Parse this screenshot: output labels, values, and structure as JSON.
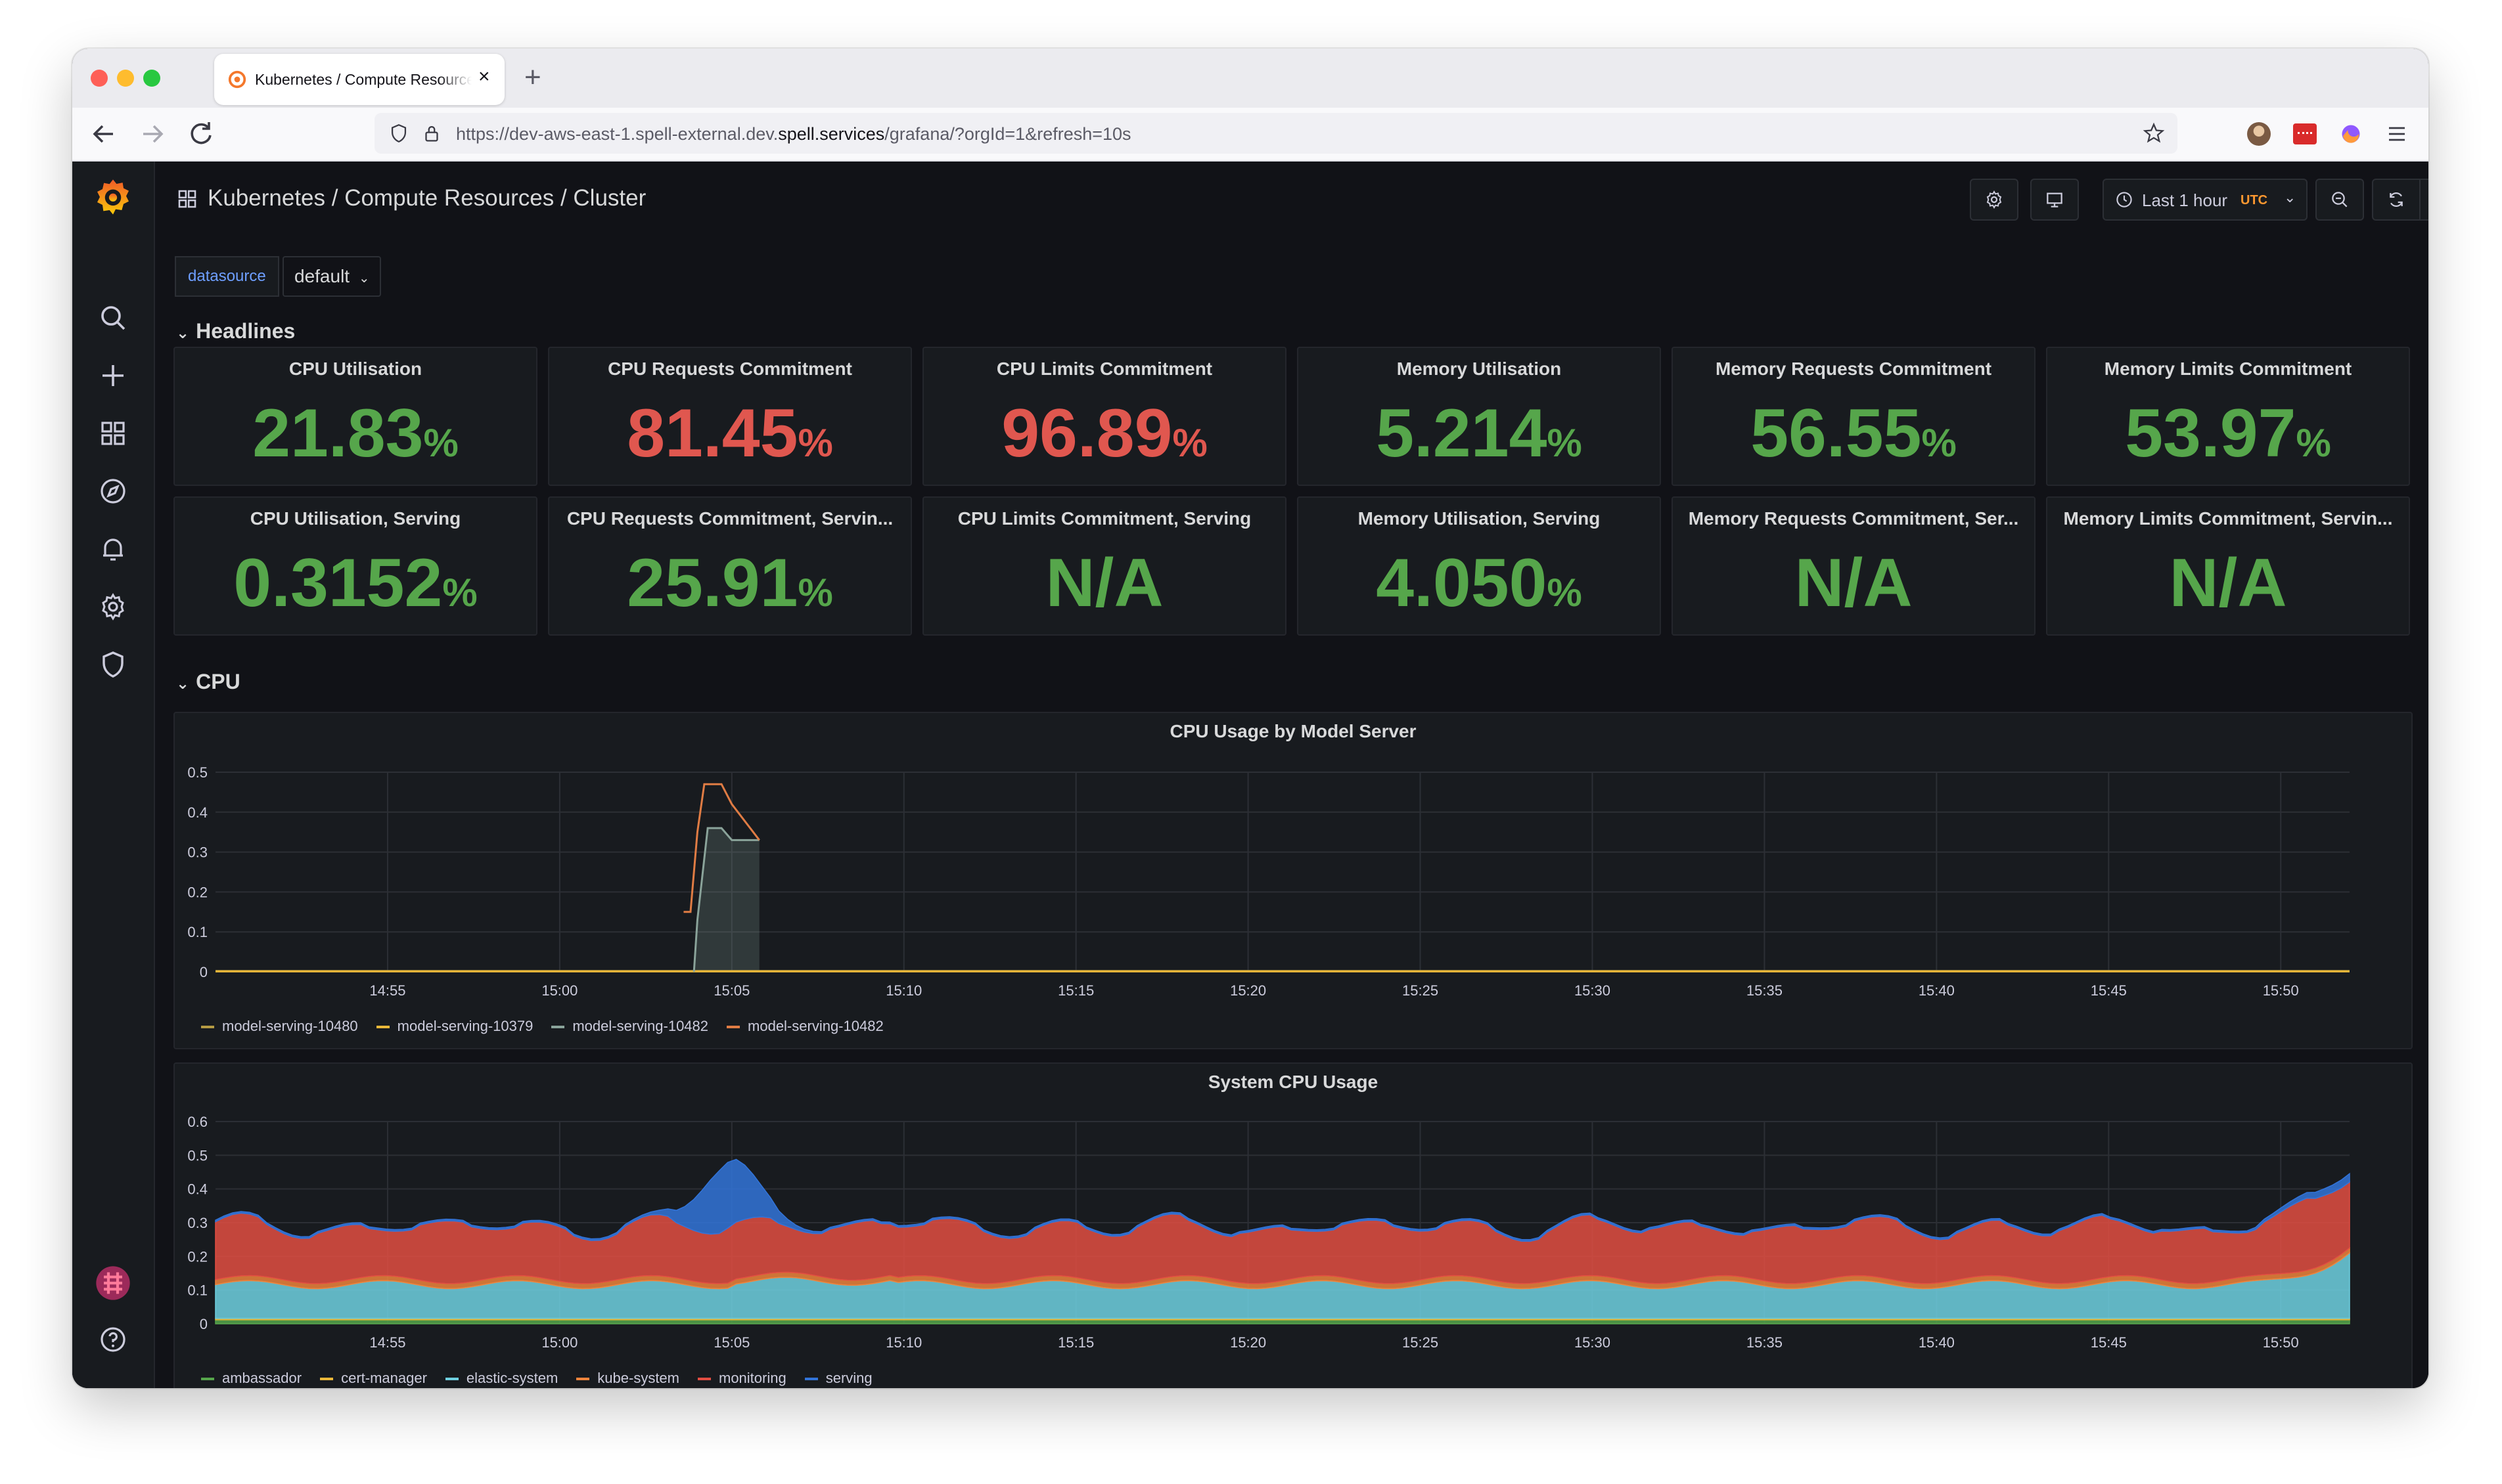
{
  "browser": {
    "tab_title": "Kubernetes / Compute Resources / Cluster",
    "new_tab_icon": "plus-icon",
    "url_prefix": "https://dev-aws-east-1.spell-external.dev.",
    "url_host": "spell.services",
    "url_path": "/grafana/?orgId=1&refresh=10s"
  },
  "grafana": {
    "title": "Kubernetes / Compute Resources / Cluster",
    "time_range": "Last 1 hour",
    "timezone": "UTC",
    "refresh": "10s",
    "variable_label": "datasource",
    "variable_value": "default",
    "side_icons": [
      "search-icon",
      "plus-icon",
      "dashboards-icon",
      "explore-icon",
      "alerting-icon",
      "settings-icon",
      "shield-icon"
    ]
  },
  "rows": {
    "headlines": "Headlines",
    "cpu": "CPU"
  },
  "colors": {
    "green": "#56a64b",
    "red": "#e0574f",
    "accent": "#ff9830"
  },
  "stats": [
    {
      "title": "CPU Utilisation",
      "value": "21.83",
      "unit": "%",
      "color": "#56a64b"
    },
    {
      "title": "CPU Requests Commitment",
      "value": "81.45",
      "unit": "%",
      "color": "#e0574f"
    },
    {
      "title": "CPU Limits Commitment",
      "value": "96.89",
      "unit": "%",
      "color": "#e0574f"
    },
    {
      "title": "Memory Utilisation",
      "value": "5.214",
      "unit": "%",
      "color": "#56a64b"
    },
    {
      "title": "Memory Requests Commitment",
      "value": "56.55",
      "unit": "%",
      "color": "#56a64b"
    },
    {
      "title": "Memory Limits Commitment",
      "value": "53.97",
      "unit": "%",
      "color": "#56a64b"
    },
    {
      "title": "CPU Utilisation, Serving",
      "value": "0.3152",
      "unit": "%",
      "color": "#56a64b"
    },
    {
      "title": "CPU Requests Commitment, Servin...",
      "value": "25.91",
      "unit": "%",
      "color": "#56a64b"
    },
    {
      "title": "CPU Limits Commitment, Serving",
      "value": "N/A",
      "unit": "",
      "color": "#56a64b"
    },
    {
      "title": "Memory Utilisation, Serving",
      "value": "4.050",
      "unit": "%",
      "color": "#56a64b"
    },
    {
      "title": "Memory Requests Commitment, Ser...",
      "value": "N/A",
      "unit": "",
      "color": "#56a64b"
    },
    {
      "title": "Memory Limits Commitment, Servin...",
      "value": "N/A",
      "unit": "",
      "color": "#56a64b"
    }
  ],
  "chart_data": [
    {
      "type": "line",
      "title": "CPU Usage by Model Server",
      "ylim": [
        0,
        0.5
      ],
      "yticks": [
        "0",
        "0.1",
        "0.2",
        "0.3",
        "0.4",
        "0.5"
      ],
      "x_range": [
        "14:50",
        "15:52"
      ],
      "xticks": [
        "14:55",
        "15:00",
        "15:05",
        "15:10",
        "15:15",
        "15:20",
        "15:25",
        "15:30",
        "15:35",
        "15:40",
        "15:45",
        "15:50"
      ],
      "grid": true,
      "legend": "bottom",
      "series": [
        {
          "name": "model-serving-10480",
          "color": "#b59b43",
          "x": [
            "14:50",
            "15:52"
          ],
          "values": [
            0.002,
            0.002
          ]
        },
        {
          "name": "model-serving-10379",
          "color": "#eab839",
          "x": [
            "14:50",
            "15:52"
          ],
          "values": [
            0.001,
            0.001
          ]
        },
        {
          "name": "model-serving-10482",
          "color": "#8aa39a",
          "x": [
            "15:03.9",
            "15:04",
            "15:04.3",
            "15:04.7",
            "15:05",
            "15:05.8"
          ],
          "values": [
            0,
            0.13,
            0.36,
            0.36,
            0.33,
            0.33
          ]
        },
        {
          "name": "model-serving-10482",
          "color": "#e07c44",
          "x": [
            "15:03.6",
            "15:03.8",
            "15:04",
            "15:04.2",
            "15:04.7",
            "15:05",
            "15:05.8"
          ],
          "values": [
            0.15,
            0.15,
            0.35,
            0.47,
            0.47,
            0.42,
            0.33
          ]
        }
      ]
    },
    {
      "type": "area",
      "title": "System CPU Usage",
      "stacked": true,
      "ylim": [
        0,
        0.6
      ],
      "yticks": [
        "0",
        "0.1",
        "0.2",
        "0.3",
        "0.4",
        "0.5",
        "0.6"
      ],
      "x_range": [
        "14:50",
        "15:52"
      ],
      "xticks": [
        "14:55",
        "15:00",
        "15:05",
        "15:10",
        "15:15",
        "15:20",
        "15:25",
        "15:30",
        "15:35",
        "15:40",
        "15:45",
        "15:50"
      ],
      "grid": true,
      "legend": "bottom",
      "series": [
        {
          "name": "ambassador",
          "color": "#56a64b"
        },
        {
          "name": "cert-manager",
          "color": "#eab839"
        },
        {
          "name": "elastic-system",
          "color": "#6ed0e0"
        },
        {
          "name": "kube-system",
          "color": "#ef843c"
        },
        {
          "name": "monitoring",
          "color": "#e24d42"
        },
        {
          "name": "serving",
          "color": "#3274d9"
        }
      ]
    }
  ]
}
